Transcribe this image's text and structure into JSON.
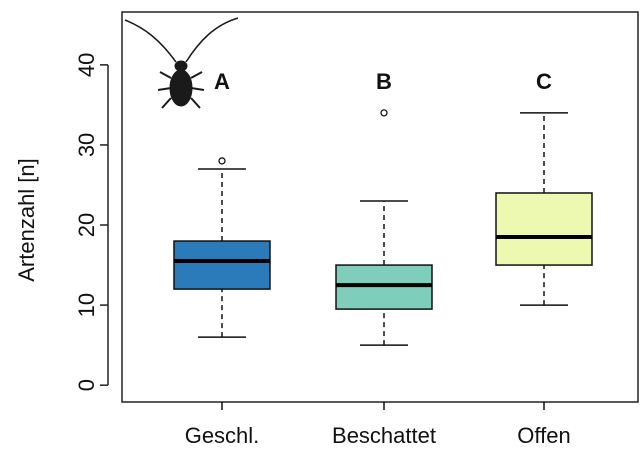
{
  "chart_data": {
    "type": "box",
    "y_label": "Artenzahl [n]",
    "categories": [
      "Geschl.",
      "Beschattet",
      "Offen"
    ],
    "annotations": [
      "A",
      "B",
      "C"
    ],
    "colors": [
      "#2b7bba",
      "#7fcdbb",
      "#edf8b1"
    ],
    "min": [
      6,
      5,
      10
    ],
    "q1": [
      12,
      9.5,
      15
    ],
    "median": [
      15.5,
      12.5,
      18.5
    ],
    "q3": [
      18,
      15,
      24
    ],
    "max": [
      27,
      23,
      34
    ],
    "outliers": [
      [
        28
      ],
      [
        34
      ],
      []
    ],
    "ylim": [
      -2.1,
      46.6
    ],
    "yticks": [
      0,
      10,
      20,
      30,
      40
    ]
  }
}
